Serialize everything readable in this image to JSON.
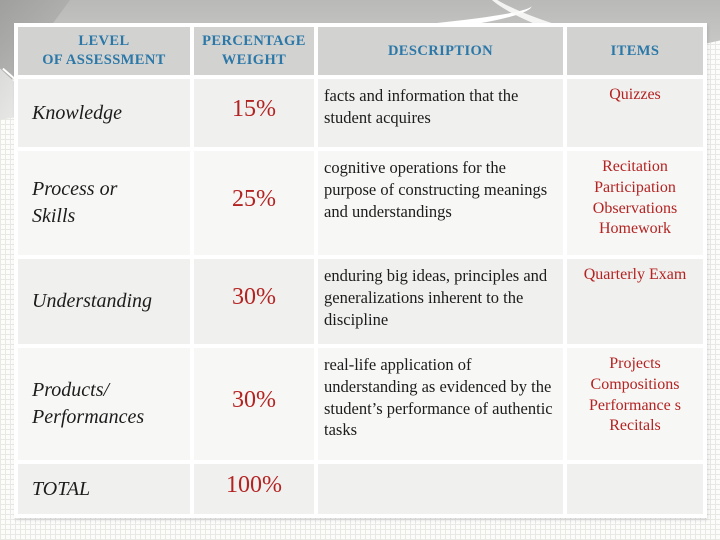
{
  "colors": {
    "header_text_blue": "#2b78a8",
    "value_red": "#b32322",
    "body_text_black": "#1c1c1c",
    "header_cell_bg": "#d2d2d0",
    "row_band_dark": "#f0f0ee",
    "row_band_light": "#f7f7f5",
    "banner_gray": "#c7c7c5"
  },
  "table": {
    "columns": [
      {
        "key": "level",
        "label": "LEVEL\nOF ASSESSMENT"
      },
      {
        "key": "weight",
        "label": "PERCENTAGE\nWEIGHT"
      },
      {
        "key": "description",
        "label": "DESCRIPTION"
      },
      {
        "key": "items",
        "label": "ITEMS"
      }
    ],
    "rows": [
      {
        "level": "Knowledge",
        "weight": "15%",
        "description": "facts and information that the student acquires",
        "items": "Quizzes"
      },
      {
        "level": "Process or\nSkills",
        "weight": "25%",
        "description": "cognitive operations for the purpose of constructing meanings and understandings",
        "items": "Recitation\nParticipation\nObservations\nHomework"
      },
      {
        "level": "Understanding",
        "weight": "30%",
        "description": "enduring big ideas, principles and generalizations inherent to the discipline",
        "items": "Quarterly Exam"
      },
      {
        "level": "Products/\nPerformances",
        "weight": "30%",
        "description": "real-life application of understanding as evidenced by the student’s performance of authentic tasks",
        "items": "Projects\nCompositions\nPerformance s\nRecitals"
      },
      {
        "level": "TOTAL",
        "weight": "100%",
        "description": "",
        "items": ""
      }
    ]
  }
}
